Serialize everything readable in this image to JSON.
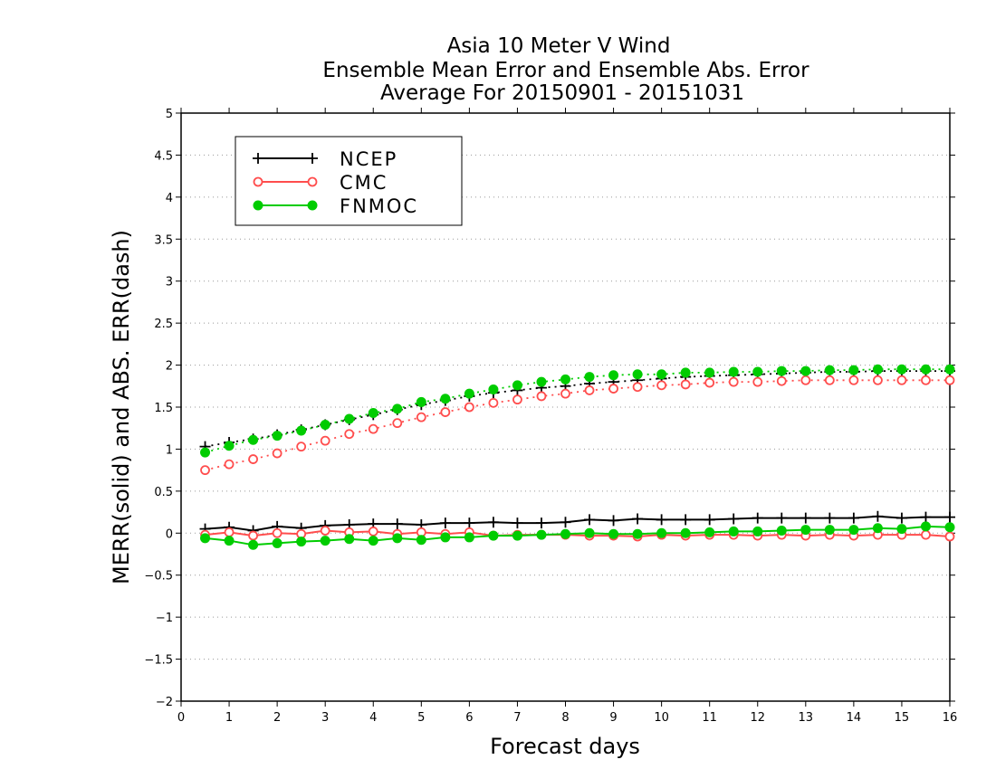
{
  "chart_data": {
    "type": "line",
    "title": [
      "Asia 10 Meter V Wind",
      "Ensemble Mean Error and Ensemble Abs. Error",
      "Average For 20150901 - 20151031"
    ],
    "xlabel": "Forecast days",
    "ylabel": "MERR(solid) and ABS. ERR(dash)",
    "xlim": [
      0,
      16
    ],
    "ylim": [
      -2,
      5
    ],
    "xticks": [
      0,
      1,
      2,
      3,
      4,
      5,
      6,
      7,
      8,
      9,
      10,
      11,
      12,
      13,
      14,
      15,
      16
    ],
    "yticks": [
      -2,
      -1.5,
      -1,
      -0.5,
      0,
      0.5,
      1,
      1.5,
      2,
      2.5,
      3,
      3.5,
      4,
      4.5,
      5
    ],
    "grid": "horizontal dotted",
    "legend_position": "top-left",
    "x": [
      0.5,
      1,
      1.5,
      2,
      2.5,
      3,
      3.5,
      4,
      4.5,
      5,
      5.5,
      6,
      6.5,
      7,
      7.5,
      8,
      8.5,
      9,
      9.5,
      10,
      10.5,
      11,
      11.5,
      12,
      12.5,
      13,
      13.5,
      14,
      14.5,
      15,
      15.5,
      16
    ],
    "series": [
      {
        "name": "NCEP",
        "color": "#000000",
        "marker": "plus",
        "merr": [
          0.05,
          0.07,
          0.03,
          0.08,
          0.06,
          0.09,
          0.1,
          0.11,
          0.11,
          0.1,
          0.12,
          0.12,
          0.13,
          0.12,
          0.12,
          0.13,
          0.16,
          0.15,
          0.17,
          0.16,
          0.16,
          0.16,
          0.17,
          0.18,
          0.18,
          0.18,
          0.18,
          0.18,
          0.2,
          0.18,
          0.19,
          0.19
        ],
        "abs_err": [
          1.03,
          1.08,
          1.12,
          1.17,
          1.23,
          1.29,
          1.35,
          1.41,
          1.47,
          1.53,
          1.58,
          1.63,
          1.67,
          1.7,
          1.73,
          1.75,
          1.78,
          1.8,
          1.82,
          1.84,
          1.86,
          1.87,
          1.88,
          1.89,
          1.9,
          1.91,
          1.92,
          1.92,
          1.93,
          1.93,
          1.93,
          1.93
        ]
      },
      {
        "name": "CMC",
        "color": "#ff4d4d",
        "marker": "open-circle",
        "merr": [
          -0.02,
          0.01,
          -0.03,
          0.0,
          -0.01,
          0.03,
          0.01,
          0.02,
          -0.01,
          0.01,
          -0.01,
          0.01,
          -0.03,
          -0.02,
          -0.02,
          -0.02,
          -0.03,
          -0.03,
          -0.04,
          -0.02,
          -0.03,
          -0.02,
          -0.02,
          -0.03,
          -0.02,
          -0.03,
          -0.02,
          -0.03,
          -0.02,
          -0.02,
          -0.02,
          -0.04
        ],
        "abs_err": [
          0.75,
          0.82,
          0.88,
          0.95,
          1.03,
          1.1,
          1.18,
          1.24,
          1.31,
          1.38,
          1.44,
          1.5,
          1.55,
          1.59,
          1.63,
          1.66,
          1.7,
          1.72,
          1.74,
          1.76,
          1.77,
          1.79,
          1.8,
          1.8,
          1.81,
          1.82,
          1.82,
          1.82,
          1.82,
          1.82,
          1.82,
          1.82
        ]
      },
      {
        "name": "FNMOC",
        "color": "#00cc00",
        "marker": "filled-circle",
        "merr": [
          -0.06,
          -0.09,
          -0.14,
          -0.12,
          -0.1,
          -0.09,
          -0.07,
          -0.09,
          -0.06,
          -0.08,
          -0.05,
          -0.05,
          -0.03,
          -0.03,
          -0.02,
          -0.01,
          0.0,
          -0.01,
          -0.01,
          0.0,
          0.0,
          0.01,
          0.02,
          0.02,
          0.03,
          0.04,
          0.04,
          0.04,
          0.06,
          0.05,
          0.08,
          0.07
        ],
        "abs_err": [
          0.96,
          1.04,
          1.11,
          1.16,
          1.22,
          1.29,
          1.36,
          1.43,
          1.48,
          1.56,
          1.6,
          1.66,
          1.71,
          1.76,
          1.8,
          1.83,
          1.86,
          1.88,
          1.89,
          1.89,
          1.91,
          1.91,
          1.92,
          1.92,
          1.93,
          1.93,
          1.94,
          1.94,
          1.95,
          1.95,
          1.95,
          1.95
        ]
      }
    ]
  }
}
